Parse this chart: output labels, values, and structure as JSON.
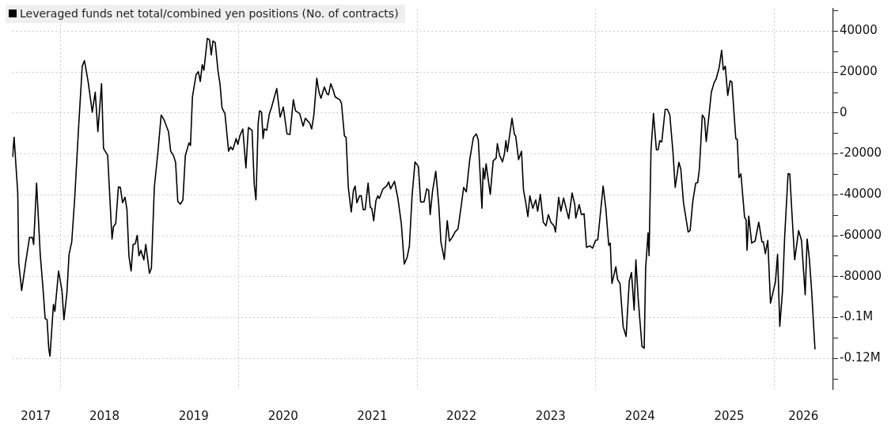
{
  "chart_data": {
    "type": "line",
    "xlim": [
      "2017-06-18",
      "2026-08-31"
    ],
    "xticks": [
      {
        "value": "2017-09-23",
        "label": "2017"
      },
      {
        "value": "2018-01-01",
        "label": null
      },
      {
        "value": "2018-07-01",
        "label": "2018"
      },
      {
        "value": "2019-07-01",
        "label": "2019"
      },
      {
        "value": "2020-01-01",
        "label": null
      },
      {
        "value": "2020-07-01",
        "label": "2020"
      },
      {
        "value": "2021-07-01",
        "label": "2021"
      },
      {
        "value": "2022-01-01",
        "label": null
      },
      {
        "value": "2022-07-01",
        "label": "2022"
      },
      {
        "value": "2023-07-01",
        "label": "2023"
      },
      {
        "value": "2024-01-01",
        "label": null
      },
      {
        "value": "2024-07-01",
        "label": "2024"
      },
      {
        "value": "2025-07-01",
        "label": "2025"
      },
      {
        "value": "2026-01-01",
        "label": null
      },
      {
        "value": "2026-05-01",
        "label": "2026"
      }
    ],
    "ylim": [
      -135000,
      51000
    ],
    "yticks": [
      {
        "value": -130000,
        "label": null
      },
      {
        "value": -120000,
        "label": "-0.12M"
      },
      {
        "value": -110000,
        "label": null
      },
      {
        "value": -100000,
        "label": "-0.1M"
      },
      {
        "value": -90000,
        "label": null
      },
      -80000,
      {
        "value": -70000,
        "label": null
      },
      -60000,
      {
        "value": -50000,
        "label": null
      },
      -40000,
      {
        "value": -30000,
        "label": null
      },
      -20000,
      {
        "value": -10000,
        "label": null
      },
      0,
      {
        "value": 10000,
        "label": null
      },
      20000,
      {
        "value": 30000,
        "label": null
      },
      40000,
      {
        "value": 50000,
        "label": null
      }
    ],
    "grid": true,
    "legend": "top left",
    "series": [
      {
        "name": "Leveraged funds net total/combined yen positions (No. of contracts)",
        "color": "#000000",
        "x": [
          "2017-06-20",
          "2017-06-26",
          "2017-07-11",
          "2017-07-15",
          "2017-07-27",
          "2017-08-14",
          "2017-08-28",
          "2017-09-09",
          "2017-09-14",
          "2017-09-26",
          "2017-10-11",
          "2017-10-23",
          "2017-10-31",
          "2017-11-08",
          "2017-11-15",
          "2017-11-20",
          "2017-12-04",
          "2017-12-10",
          "2017-12-25",
          "2018-01-08",
          "2018-01-16",
          "2018-01-28",
          "2018-02-06",
          "2018-02-17",
          "2018-03-01",
          "2018-03-18",
          "2018-04-01",
          "2018-04-10",
          "2018-04-25",
          "2018-05-12",
          "2018-05-24",
          "2018-06-04",
          "2018-06-19",
          "2018-06-27",
          "2018-07-14",
          "2018-07-29",
          "2018-08-01",
          "2018-08-07",
          "2018-08-16",
          "2018-08-27",
          "2018-09-04",
          "2018-09-13",
          "2018-09-23",
          "2018-10-01",
          "2018-10-09",
          "2018-10-18",
          "2018-10-26",
          "2018-11-04",
          "2018-11-12",
          "2018-11-19",
          "2018-11-27",
          "2018-12-09",
          "2018-12-17",
          "2019-01-01",
          "2019-01-09",
          "2019-01-21",
          "2019-02-05",
          "2019-02-18",
          "2019-03-03",
          "2019-03-20",
          "2019-03-29",
          "2019-04-09",
          "2019-04-18",
          "2019-04-27",
          "2019-05-08",
          "2019-05-18",
          "2019-05-28",
          "2019-06-12",
          "2019-06-18",
          "2019-06-26",
          "2019-07-11",
          "2019-07-20",
          "2019-07-28",
          "2019-08-05",
          "2019-08-12",
          "2019-08-26",
          "2019-09-04",
          "2019-09-11",
          "2019-09-18",
          "2019-09-27",
          "2019-10-09",
          "2019-10-17",
          "2019-10-25",
          "2019-11-06",
          "2019-11-21",
          "2019-11-29",
          "2019-12-08",
          "2019-12-22",
          "2019-12-29",
          "2020-01-06",
          "2020-01-18",
          "2020-01-31",
          "2020-02-10",
          "2020-02-25",
          "2020-03-05",
          "2020-03-12",
          "2020-03-21",
          "2020-03-27",
          "2020-04-04",
          "2020-04-10",
          "2020-04-15",
          "2020-04-25",
          "2020-05-06",
          "2020-05-14",
          "2020-06-05",
          "2020-06-19",
          "2020-07-02",
          "2020-07-17",
          "2020-07-29",
          "2020-08-12",
          "2020-08-21",
          "2020-09-07",
          "2020-09-21",
          "2020-09-30",
          "2020-10-18",
          "2020-10-26",
          "2020-11-04",
          "2020-11-16",
          "2020-11-25",
          "2020-12-03",
          "2020-12-17",
          "2020-12-28",
          "2021-01-03",
          "2021-01-12",
          "2021-01-22",
          "2021-01-30",
          "2021-02-18",
          "2021-02-25",
          "2021-03-09",
          "2021-03-16",
          "2021-03-25",
          "2021-04-06",
          "2021-04-15",
          "2021-04-22",
          "2021-04-29",
          "2021-05-10",
          "2021-05-17",
          "2021-05-25",
          "2021-06-02",
          "2021-06-14",
          "2021-06-23",
          "2021-06-29",
          "2021-07-07",
          "2021-07-16",
          "2021-07-24",
          "2021-07-30",
          "2021-08-14",
          "2021-08-29",
          "2021-09-06",
          "2021-09-14",
          "2021-09-30",
          "2021-10-14",
          "2021-10-28",
          "2021-11-09",
          "2021-11-21",
          "2021-11-30",
          "2021-12-11",
          "2021-12-23",
          "2022-01-06",
          "2022-01-15",
          "2022-01-29",
          "2022-02-09",
          "2022-02-17",
          "2022-02-23",
          "2022-03-05",
          "2022-03-18",
          "2022-03-30",
          "2022-04-08",
          "2022-04-22",
          "2022-05-04",
          "2022-05-13",
          "2022-05-24",
          "2022-06-05",
          "2022-06-17",
          "2022-06-28",
          "2022-07-10",
          "2022-07-21",
          "2022-08-04",
          "2022-08-19",
          "2022-08-31",
          "2022-09-08",
          "2022-09-23",
          "2022-09-28",
          "2022-10-04",
          "2022-10-10",
          "2022-10-27",
          "2022-11-08",
          "2022-11-20",
          "2022-11-25",
          "2022-12-04",
          "2022-12-16",
          "2022-12-24",
          "2022-12-30",
          "2023-01-05",
          "2023-01-24",
          "2023-02-03",
          "2023-02-08",
          "2023-02-20",
          "2023-03-04",
          "2023-03-12",
          "2023-03-21",
          "2023-03-30",
          "2023-04-07",
          "2023-04-19",
          "2023-05-01",
          "2023-05-09",
          "2023-05-20",
          "2023-06-01",
          "2023-06-12",
          "2023-06-22",
          "2023-07-02",
          "2023-07-15",
          "2023-07-21",
          "2023-08-03",
          "2023-08-12",
          "2023-08-23",
          "2023-09-13",
          "2023-09-27",
          "2023-10-08",
          "2023-10-12",
          "2023-10-26",
          "2023-11-04",
          "2023-11-15",
          "2023-11-25",
          "2023-12-09",
          "2023-12-20",
          "2024-01-01",
          "2024-01-10",
          "2024-02-01",
          "2024-02-12",
          "2024-02-24",
          "2024-03-01",
          "2024-03-08",
          "2024-03-24",
          "2024-03-31",
          "2024-04-10",
          "2024-04-23",
          "2024-05-05",
          "2024-05-18",
          "2024-05-27",
          "2024-06-07",
          "2024-06-14",
          "2024-06-24",
          "2024-07-09",
          "2024-07-18",
          "2024-07-24",
          "2024-08-03",
          "2024-08-07",
          "2024-08-15",
          "2024-08-25",
          "2024-09-06",
          "2024-09-13",
          "2024-09-20",
          "2024-09-28",
          "2024-10-12",
          "2024-10-21",
          "2024-10-31",
          "2024-11-13",
          "2024-11-22",
          "2024-12-07",
          "2024-12-15",
          "2024-12-26",
          "2025-01-14",
          "2025-01-22",
          "2025-02-02",
          "2025-02-14",
          "2025-02-22",
          "2025-03-01",
          "2025-03-13",
          "2025-03-22",
          "2025-03-29",
          "2025-04-19",
          "2025-04-30",
          "2025-05-09",
          "2025-05-21",
          "2025-05-31",
          "2025-06-07",
          "2025-06-15",
          "2025-06-25",
          "2025-07-05",
          "2025-07-12",
          "2025-07-28",
          "2025-08-03",
          "2025-08-10",
          "2025-08-18",
          "2025-09-02",
          "2025-09-08",
          "2025-09-12",
          "2025-09-19",
          "2025-10-01",
          "2025-10-15",
          "2025-10-30",
          "2025-11-12",
          "2025-11-18",
          "2025-11-26",
          "2025-12-06",
          "2025-12-17",
          "2025-12-29",
          "2026-01-06",
          "2026-01-15",
          "2026-01-24",
          "2026-02-04",
          "2026-02-13",
          "2026-02-27",
          "2026-03-06",
          "2026-03-14",
          "2026-03-26",
          "2026-04-11",
          "2026-04-23",
          "2026-05-08",
          "2026-05-16",
          "2026-05-25",
          "2026-06-03",
          "2026-06-17"
        ],
        "values": [
          -21400,
          -11900,
          -39100,
          -73200,
          -86800,
          -71800,
          -60900,
          -60900,
          -64300,
          -34300,
          -69100,
          -86800,
          -100500,
          -101100,
          -115400,
          -118900,
          -93600,
          -97000,
          -77300,
          -86800,
          -101100,
          -88200,
          -69100,
          -63000,
          -41800,
          -5000,
          22900,
          25600,
          15400,
          400,
          10200,
          -9100,
          14300,
          -17300,
          -20700,
          -55500,
          -61600,
          -55500,
          -54100,
          -36100,
          -36400,
          -43900,
          -41200,
          -47300,
          -69800,
          -77300,
          -64300,
          -63900,
          -59800,
          -69800,
          -67100,
          -71800,
          -64300,
          -78400,
          -75900,
          -36400,
          -18700,
          -1000,
          -3700,
          -9100,
          -18700,
          -20700,
          -24100,
          -43200,
          -44600,
          -42500,
          -20700,
          -14600,
          -15900,
          7900,
          18800,
          20200,
          15400,
          23600,
          20900,
          36500,
          35800,
          28400,
          35200,
          34500,
          20200,
          14000,
          2500,
          -300,
          -18700,
          -16600,
          -18000,
          -12500,
          -15300,
          -11200,
          -7800,
          -26900,
          -7100,
          -8500,
          -35000,
          -42500,
          -5000,
          1100,
          400,
          -12500,
          -7800,
          -8500,
          -300,
          2500,
          12000,
          -2000,
          2900,
          -10200,
          -10500,
          6500,
          1100,
          -300,
          -6400,
          -2600,
          -5000,
          -7800,
          -1000,
          17000,
          10200,
          7200,
          12700,
          9300,
          8900,
          14300,
          11300,
          7900,
          6500,
          4800,
          -11200,
          -11900,
          -36400,
          -48400,
          -37800,
          -35700,
          -43900,
          -40500,
          -40500,
          -47300,
          -47300,
          -34300,
          -46200,
          -46600,
          -52700,
          -42900,
          -40500,
          -41800,
          -37100,
          -35700,
          -33700,
          -37100,
          -33400,
          -41800,
          -54100,
          -73900,
          -70500,
          -65000,
          -40500,
          -23900,
          -26200,
          -43500,
          -43500,
          -37100,
          -37800,
          -49700,
          -38000,
          -28500,
          -44600,
          -63000,
          -71600,
          -52700,
          -62700,
          -60900,
          -58200,
          -56600,
          -47300,
          -36400,
          -38600,
          -22800,
          -11900,
          -10200,
          -13200,
          -46600,
          -26900,
          -32300,
          -24800,
          -39800,
          -23400,
          -22100,
          -15000,
          -20700,
          -23900,
          -20000,
          -13500,
          -18900,
          -2600,
          -10500,
          -11200,
          -22800,
          -18700,
          -37500,
          -43600,
          -50700,
          -40500,
          -46600,
          -42500,
          -48000,
          -39800,
          -53400,
          -55200,
          -49700,
          -53400,
          -55200,
          -58200,
          -41200,
          -48000,
          -41600,
          -51700,
          -39100,
          -44800,
          -51400,
          -44800,
          -49700,
          -49300,
          -65700,
          -65000,
          -66100,
          -62300,
          -62000,
          -35700,
          -46600,
          -64700,
          -63600,
          -83400,
          -75200,
          -81400,
          -83400,
          -104500,
          -109300,
          -82100,
          -78000,
          -96400,
          -71800,
          -91600,
          -114100,
          -115000,
          -75900,
          -58600,
          -69800,
          -18000,
          -300,
          -18000,
          -18000,
          -13500,
          -14200,
          1800,
          1800,
          -1000,
          -19400,
          -36400,
          -24100,
          -27500,
          -43900,
          -58200,
          -57500,
          -43200,
          -34300,
          -34100,
          -27300,
          -1000,
          -2600,
          -13900,
          10200,
          14700,
          16800,
          22200,
          30700,
          21100,
          22900,
          8600,
          15800,
          15100,
          -12500,
          -12900,
          -31600,
          -29800,
          -51100,
          -52100,
          -67100,
          -50400,
          -63600,
          -62600,
          -53400,
          -63000,
          -63000,
          -68800,
          -62300,
          -93000,
          -86800,
          -82700,
          -69100,
          -104300,
          -87500,
          -60700,
          -29600,
          -29800,
          -47300,
          -71800,
          -57500,
          -62300,
          -88900,
          -61600,
          -71200,
          -86100,
          -115400
        ]
      }
    ]
  }
}
